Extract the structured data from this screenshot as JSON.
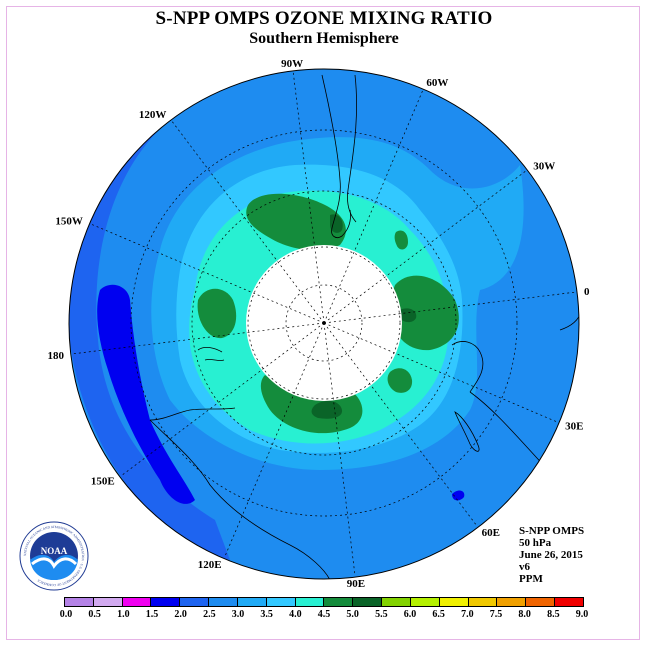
{
  "title": "S-NPP OMPS OZONE MIXING RATIO",
  "subtitle": "Southern Hemisphere",
  "logo_text": "NOAA",
  "logo_ring_text": "NATIONAL OCEANIC AND ATMOSPHERIC ADMINISTRATION · U.S. DEPARTMENT OF COMMERCE",
  "info": {
    "instrument": "S-NPP OMPS",
    "level": "50 hPa",
    "date": "June 26, 2015",
    "version": "v6",
    "units": "PPM"
  },
  "meridian_labels": [
    "0",
    "30E",
    "60E",
    "90E",
    "120E",
    "150E",
    "180",
    "150W",
    "120W",
    "90W",
    "60W",
    "30W"
  ],
  "colorbar": {
    "ticks": [
      "0.0",
      "0.5",
      "1.0",
      "1.5",
      "2.0",
      "2.5",
      "3.0",
      "3.5",
      "4.0",
      "4.5",
      "5.0",
      "5.5",
      "6.0",
      "6.5",
      "7.0",
      "7.5",
      "8.0",
      "8.5",
      "9.0"
    ],
    "colors": [
      "#b482e6",
      "#d2aaf0",
      "#f000f0",
      "#0000f0",
      "#1e64f0",
      "#1e8cf0",
      "#20aaf5",
      "#32c8ff",
      "#28f0d2",
      "#148c3c",
      "#0a6428",
      "#82d200",
      "#b4f000",
      "#f0f000",
      "#f0c800",
      "#f0a000",
      "#f06400",
      "#f00000",
      "#8c5a3c"
    ]
  },
  "map_colors": {
    "level_2_0": "#0000f0",
    "level_2_5": "#1e64f0",
    "level_3_0": "#1e8cf0",
    "level_3_5": "#20aaf5",
    "level_4_0": "#28f0d2",
    "level_4_5": "#148c3c",
    "level_5_0": "#0a6428",
    "no_data": "#ffffff"
  }
}
